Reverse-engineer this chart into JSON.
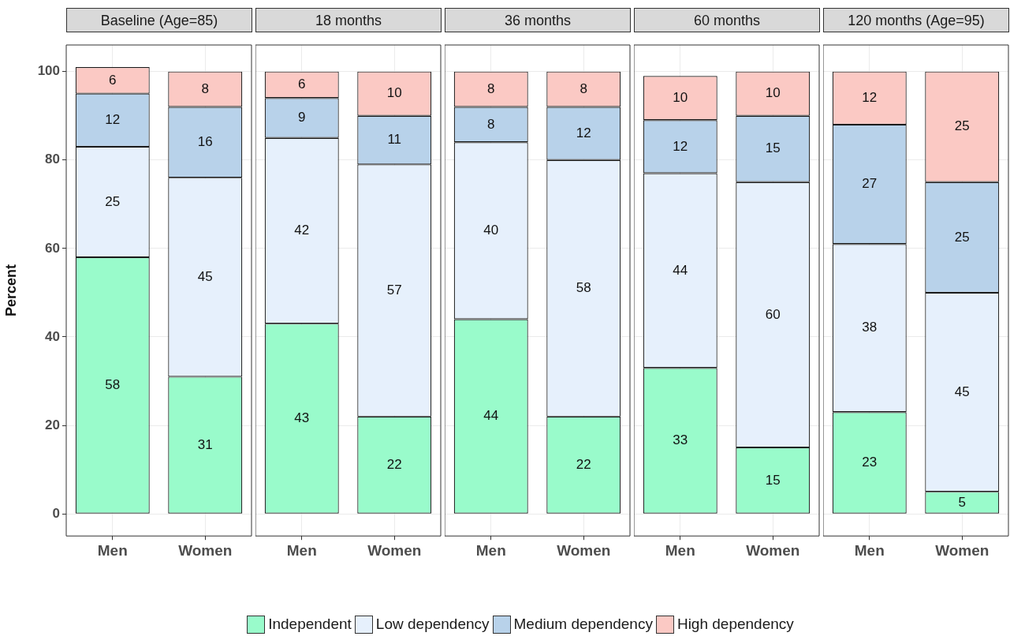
{
  "chart_data": [
    {
      "type": "bar",
      "title": "Baseline (Age=85)",
      "ylabel": "Percent",
      "categories": [
        "Men",
        "Women"
      ],
      "stacked": true,
      "data_labels": true,
      "ylim": [
        -5,
        106
      ],
      "yticks": [
        0,
        20,
        40,
        60,
        80,
        100
      ],
      "grid": true,
      "legend": "bottom",
      "series": [
        {
          "name": "Independent",
          "color": "#99fbcb",
          "values": [
            58,
            31
          ]
        },
        {
          "name": "Low dependency",
          "color": "#e6f0fc",
          "values": [
            25,
            45
          ]
        },
        {
          "name": "Medium dependency",
          "color": "#b8d2ea",
          "values": [
            12,
            16
          ]
        },
        {
          "name": "High dependency",
          "color": "#fbc9c4",
          "values": [
            6,
            8
          ]
        }
      ]
    },
    {
      "type": "bar",
      "title": "18 months",
      "categories": [
        "Men",
        "Women"
      ],
      "stacked": true,
      "data_labels": true,
      "ylim": [
        -5,
        106
      ],
      "yticks": [
        0,
        20,
        40,
        60,
        80,
        100
      ],
      "grid": true,
      "tick_labels": "x",
      "series": [
        {
          "color": "#99fbcb",
          "values": [
            43,
            22
          ]
        },
        {
          "color": "#e6f0fc",
          "values": [
            42,
            57
          ]
        },
        {
          "color": "#b8d2ea",
          "values": [
            9,
            11
          ]
        },
        {
          "color": "#fbc9c4",
          "values": [
            6,
            10
          ]
        }
      ]
    },
    {
      "type": "bar",
      "title": "36 months",
      "categories": [
        "Men",
        "Women"
      ],
      "stacked": true,
      "data_labels": true,
      "ylim": [
        -5,
        106
      ],
      "yticks": [
        0,
        20,
        40,
        60,
        80,
        100
      ],
      "grid": true,
      "tick_labels": "x",
      "series": [
        {
          "color": "#99fbcb",
          "values": [
            44,
            22
          ]
        },
        {
          "color": "#e6f0fc",
          "values": [
            40,
            58
          ]
        },
        {
          "color": "#b8d2ea",
          "values": [
            8,
            12
          ]
        },
        {
          "color": "#fbc9c4",
          "values": [
            8,
            8
          ]
        }
      ]
    },
    {
      "type": "bar",
      "title": "60 months",
      "categories": [
        "Men",
        "Women"
      ],
      "stacked": true,
      "data_labels": true,
      "ylim": [
        -5,
        106
      ],
      "yticks": [
        0,
        20,
        40,
        60,
        80,
        100
      ],
      "grid": true,
      "tick_labels": "x",
      "series": [
        {
          "color": "#99fbcb",
          "values": [
            33,
            15
          ]
        },
        {
          "color": "#e6f0fc",
          "values": [
            44,
            60
          ]
        },
        {
          "color": "#b8d2ea",
          "values": [
            12,
            15
          ]
        },
        {
          "color": "#fbc9c4",
          "values": [
            10,
            10
          ]
        }
      ]
    },
    {
      "type": "bar",
      "title": "120 months (Age=95)",
      "categories": [
        "Men",
        "Women"
      ],
      "stacked": true,
      "data_labels": true,
      "ylim": [
        -5,
        106
      ],
      "yticks": [
        0,
        20,
        40,
        60,
        80,
        100
      ],
      "grid": true,
      "tick_labels": "x",
      "series": [
        {
          "color": "#99fbcb",
          "values": [
            23,
            5
          ]
        },
        {
          "color": "#e6f0fc",
          "values": [
            38,
            45
          ]
        },
        {
          "color": "#b8d2ea",
          "values": [
            27,
            25
          ]
        },
        {
          "color": "#fbc9c4",
          "values": [
            12,
            25
          ]
        }
      ]
    }
  ]
}
